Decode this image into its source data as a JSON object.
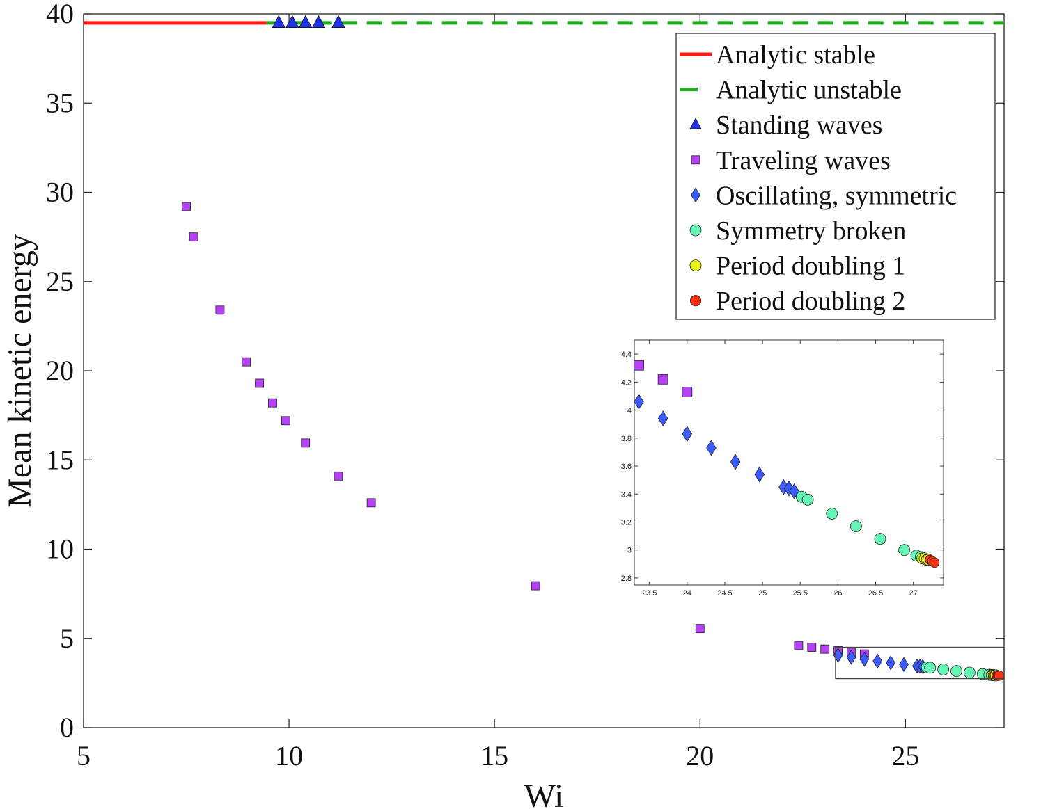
{
  "chart_data": {
    "type": "scatter",
    "title": "",
    "xlabel": "Wi",
    "ylabel": "Mean kinetic energy",
    "xlim": [
      5,
      27.4
    ],
    "ylim": [
      0,
      40
    ],
    "xticks": [
      5,
      10,
      15,
      20,
      25
    ],
    "yticks": [
      0,
      5,
      10,
      15,
      20,
      25,
      30,
      35,
      40
    ],
    "legend_position": "top-right",
    "colors": {
      "analytic_stable": "#ff1a1a",
      "analytic_unstable": "#22aa22",
      "standing": "#1f2fe8",
      "traveling": "#b542f5",
      "oscillating": "#3b5bff",
      "symmetry_broken": "#66f5b5",
      "period_doubling_1": "#e6f21a",
      "period_doubling_2": "#ff3311"
    },
    "series": [
      {
        "key": "analytic_stable",
        "name": "Analytic stable",
        "style": "solid-line",
        "x": [
          5,
          9.45
        ],
        "y": [
          39.5,
          39.5
        ]
      },
      {
        "key": "analytic_unstable",
        "name": "Analytic unstable",
        "style": "dashed-line",
        "x": [
          9.45,
          27.4
        ],
        "y": [
          39.5,
          39.5
        ]
      },
      {
        "key": "standing",
        "name": "Standing waves",
        "style": "triangle",
        "x": [
          9.75,
          10.08,
          10.4,
          10.72,
          11.2
        ],
        "y": [
          39.5,
          39.5,
          39.5,
          39.5,
          39.5
        ]
      },
      {
        "key": "traveling",
        "name": "Traveling waves",
        "style": "square",
        "x": [
          7.5,
          7.68,
          8.32,
          8.96,
          9.28,
          9.6,
          9.92,
          10.4,
          11.2,
          12.0,
          16.0,
          20.0,
          22.4,
          22.72,
          23.04,
          23.36,
          23.68,
          24.0
        ],
        "y": [
          29.2,
          27.5,
          23.4,
          20.5,
          19.3,
          18.2,
          17.2,
          15.95,
          14.1,
          12.6,
          7.95,
          5.55,
          4.6,
          4.5,
          4.4,
          4.32,
          4.22,
          4.13
        ]
      },
      {
        "key": "oscillating",
        "name": "Oscillating, symmetric",
        "style": "diamond",
        "x": [
          23.36,
          23.68,
          24.0,
          24.32,
          24.64,
          24.96,
          25.28,
          25.35,
          25.42
        ],
        "y": [
          4.06,
          3.94,
          3.83,
          3.73,
          3.63,
          3.54,
          3.45,
          3.44,
          3.42
        ]
      },
      {
        "key": "symmetry_broken",
        "name": "Symmetry broken",
        "style": "circle",
        "x": [
          25.52,
          25.6,
          25.92,
          26.24,
          26.56,
          26.88,
          27.04,
          27.1
        ],
        "y": [
          3.38,
          3.36,
          3.26,
          3.17,
          3.08,
          3.0,
          2.96,
          2.95
        ]
      },
      {
        "key": "period_doubling_1",
        "name": "Period doubling 1",
        "style": "circle",
        "x": [
          27.12,
          27.15,
          27.18,
          27.2
        ],
        "y": [
          2.94,
          2.94,
          2.93,
          2.93
        ]
      },
      {
        "key": "period_doubling_2",
        "name": "Period doubling 2",
        "style": "circle-small",
        "x": [
          27.22,
          27.25,
          27.28
        ],
        "y": [
          2.93,
          2.92,
          2.91
        ]
      }
    ],
    "inset": {
      "xlim": [
        23.3,
        27.4
      ],
      "ylim": [
        2.75,
        4.5
      ],
      "xticks": [
        23.5,
        24,
        24.5,
        25,
        25.5,
        26,
        26.5,
        27
      ],
      "yticks": [
        2.8,
        3,
        3.2,
        3.4,
        3.6,
        3.8,
        4,
        4.2,
        4.4
      ],
      "xtick_labels": [
        "23.5",
        "24",
        "24.5",
        "25",
        "25.5",
        "26",
        "26.5",
        "27"
      ],
      "ytick_labels": [
        "2.8",
        "3",
        "3.2",
        "3.4",
        "3.6",
        "3.8",
        "4",
        "4.2",
        "4.4"
      ]
    }
  }
}
